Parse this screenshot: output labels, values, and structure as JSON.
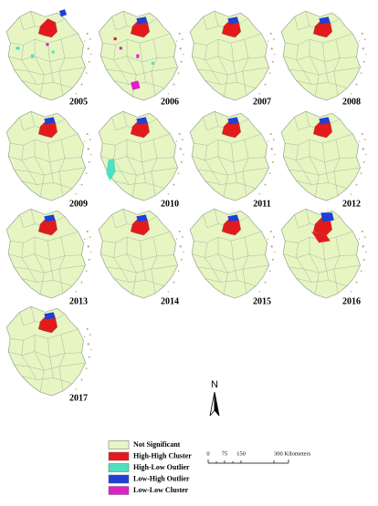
{
  "maps": [
    {
      "year": "2005"
    },
    {
      "year": "2006"
    },
    {
      "year": "2007"
    },
    {
      "year": "2008"
    },
    {
      "year": "2009"
    },
    {
      "year": "2010"
    },
    {
      "year": "2011"
    },
    {
      "year": "2012"
    },
    {
      "year": "2013"
    },
    {
      "year": "2014"
    },
    {
      "year": "2015"
    },
    {
      "year": "2016"
    },
    {
      "year": "2017"
    }
  ],
  "legend": {
    "items": [
      {
        "label": "Not Significant",
        "color": "#e6f5c2"
      },
      {
        "label": "High-High Cluster",
        "color": "#e31a1c"
      },
      {
        "label": "High-Low Outlier",
        "color": "#4fe0c0"
      },
      {
        "label": "Low-High Outlier",
        "color": "#1f3fd6"
      },
      {
        "label": "Low-Low Cluster",
        "color": "#e020c8"
      }
    ]
  },
  "north_arrow": {
    "label": "N"
  },
  "scale_bar": {
    "labels": [
      "0",
      "75",
      "150",
      "300 Kilometers"
    ]
  }
}
